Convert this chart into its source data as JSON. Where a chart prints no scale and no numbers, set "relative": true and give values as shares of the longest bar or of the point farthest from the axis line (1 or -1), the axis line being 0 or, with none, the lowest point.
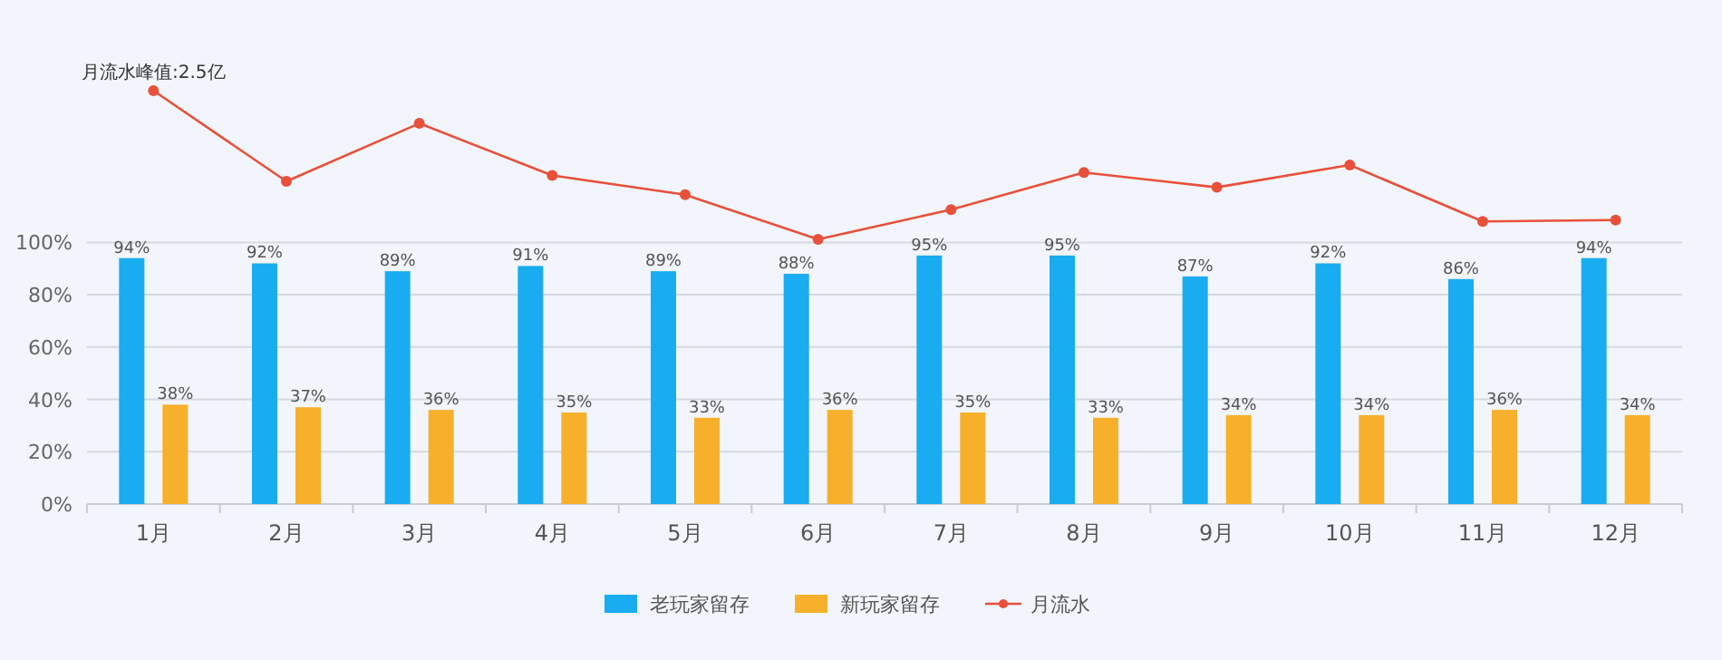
{
  "chart_data": [
    {
      "type": "bar",
      "categories": [
        "1月",
        "2月",
        "3月",
        "4月",
        "5月",
        "6月",
        "7月",
        "8月",
        "9月",
        "10月",
        "11月",
        "12月"
      ],
      "series": [
        {
          "name": "老玩家留存",
          "color": "#1aacf0",
          "values": [
            94,
            92,
            89,
            91,
            89,
            88,
            95,
            95,
            87,
            92,
            86,
            94
          ],
          "value_labels": [
            "94%",
            "92%",
            "89%",
            "91%",
            "89%",
            "88%",
            "95%",
            "95%",
            "87%",
            "92%",
            "86%",
            "94%"
          ]
        },
        {
          "name": "新玩家留存",
          "color": "#f7b02c",
          "values": [
            38,
            37,
            36,
            35,
            33,
            36,
            35,
            33,
            34,
            34,
            36,
            34
          ],
          "value_labels": [
            "38%",
            "37%",
            "36%",
            "35%",
            "33%",
            "36%",
            "35%",
            "33%",
            "34%",
            "34%",
            "36%",
            "34%"
          ]
        }
      ],
      "ylim": [
        0,
        100
      ],
      "yticks": [
        {
          "value": 0,
          "label": "0%"
        },
        {
          "value": 20,
          "label": "20%"
        },
        {
          "value": 40,
          "label": "40%"
        },
        {
          "value": 60,
          "label": "60%"
        },
        {
          "value": 80,
          "label": "80%"
        },
        {
          "value": 100,
          "label": "100%"
        }
      ],
      "grid": "y",
      "legend": "bottom"
    },
    {
      "type": "line",
      "relative": true,
      "categories": [
        null,
        null,
        null,
        null,
        null,
        null,
        null,
        null,
        null,
        null,
        null,
        null
      ],
      "series": [
        {
          "name": "月流水",
          "color": "#e8503a",
          "values": [
            1,
            0.39,
            0.78,
            0.43,
            0.3,
            0,
            0.2,
            0.45,
            0.35,
            0.5,
            0.12,
            0.13
          ]
        }
      ],
      "annotations": [
        "月流水峰值:2.5亿"
      ],
      "marker": "circle",
      "line_style": "solid"
    }
  ]
}
